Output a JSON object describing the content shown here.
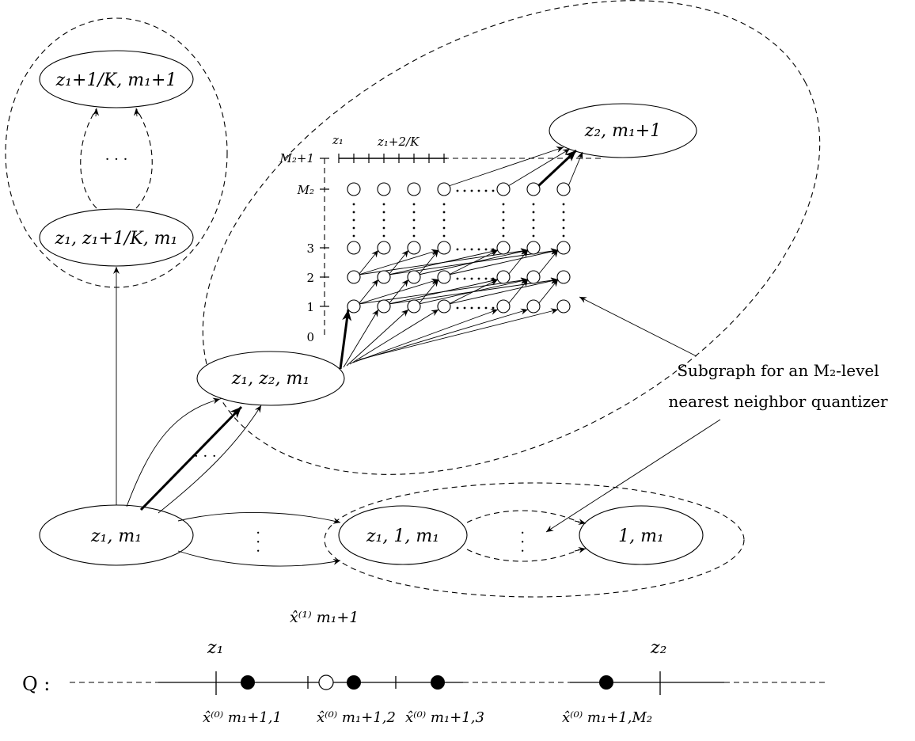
{
  "nodes": {
    "z1_m1": "z₁, m₁",
    "z1_z2_m1": "z₁, z₂, m₁",
    "z1_1_m1": "z₁, 1, m₁",
    "one_m1": "1, m₁",
    "z1_z1K_m1": "z₁, z₁+1/K, m₁",
    "z1K_m1p1": "z₁+1/K, m₁+1",
    "z2_m1p1": "z₂, m₁+1"
  },
  "subgraph": {
    "x_labels": [
      "z₁",
      "z₁+2/K"
    ],
    "y_labels": [
      "M₂+1",
      "M₂",
      "3",
      "2",
      "1",
      "0"
    ]
  },
  "annotation": {
    "line1": "Subgraph for an M₂-level",
    "line2": "nearest neighbor quantizer"
  },
  "quantizer": {
    "label": "Q :",
    "z1": "z₁",
    "z2": "z₂",
    "xhat1": "x̂⁽¹⁾ m₁+1",
    "xhat01": "x̂⁽⁰⁾ m₁+1,1",
    "xhat02": "x̂⁽⁰⁾ m₁+1,2",
    "xhat03": "x̂⁽⁰⁾ m₁+1,3",
    "xhat0M": "x̂⁽⁰⁾ m₁+1,M₂"
  },
  "ellipsis": "· · ·"
}
